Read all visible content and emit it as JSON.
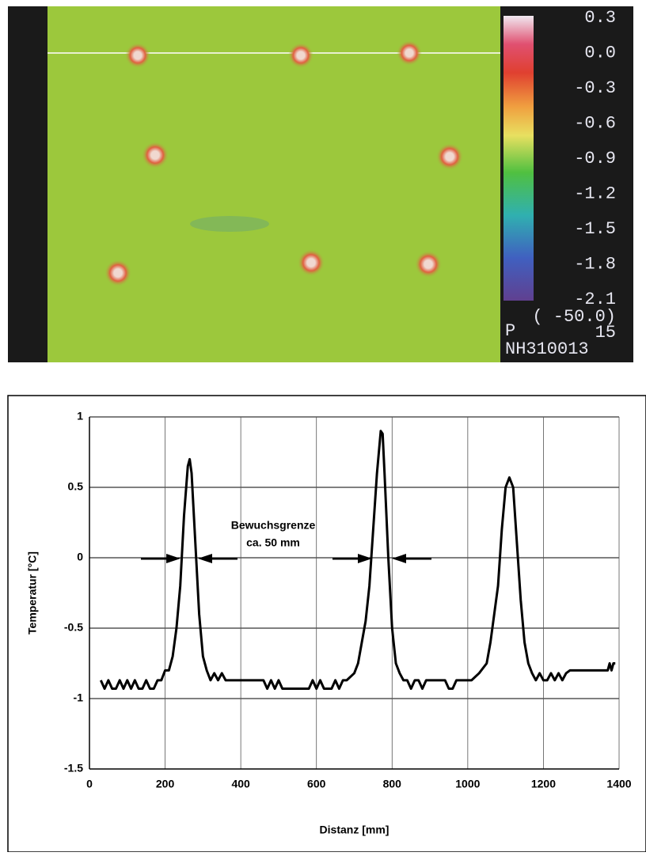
{
  "thermal_image": {
    "scale_labels": [
      "0.3",
      "0.0",
      "-0.3",
      "-0.6",
      "-0.9",
      "-1.2",
      "-1.5",
      "-1.8",
      "-2.1"
    ],
    "info": [
      "( -50.0)",
      "P",
      "15",
      "NH310013"
    ]
  },
  "chart_data": {
    "type": "line",
    "x_label": "Distanz [mm]",
    "y_label": "Temperatur [°C]",
    "annotation": [
      "Bewuchsgrenze",
      "ca. 50 mm"
    ],
    "color": "#000000",
    "xlim": [
      0,
      1400
    ],
    "xticks": [
      0,
      200,
      400,
      600,
      800,
      1000,
      1200,
      1400
    ],
    "ylim": [
      -1.5,
      1
    ],
    "yticks": [
      1,
      0.5,
      0,
      -0.5,
      -1,
      -1.5
    ],
    "grid": true,
    "x": [
      30,
      40,
      50,
      60,
      70,
      80,
      90,
      100,
      110,
      120,
      130,
      140,
      150,
      160,
      170,
      180,
      190,
      200,
      210,
      220,
      230,
      240,
      250,
      260,
      265,
      270,
      280,
      290,
      300,
      310,
      320,
      330,
      340,
      350,
      360,
      380,
      400,
      420,
      440,
      460,
      470,
      480,
      490,
      500,
      510,
      520,
      540,
      560,
      580,
      590,
      600,
      610,
      620,
      640,
      650,
      660,
      670,
      680,
      700,
      710,
      720,
      730,
      740,
      750,
      760,
      770,
      775,
      780,
      790,
      800,
      810,
      820,
      830,
      840,
      850,
      860,
      870,
      880,
      890,
      900,
      920,
      940,
      950,
      960,
      970,
      990,
      1010,
      1030,
      1050,
      1060,
      1070,
      1080,
      1090,
      1100,
      1110,
      1120,
      1130,
      1140,
      1150,
      1160,
      1170,
      1180,
      1190,
      1200,
      1210,
      1220,
      1230,
      1240,
      1250,
      1260,
      1270,
      1300,
      1340,
      1370,
      1375,
      1380,
      1385,
      1390
    ],
    "values": [
      -0.87,
      -0.93,
      -0.87,
      -0.93,
      -0.93,
      -0.87,
      -0.93,
      -0.87,
      -0.93,
      -0.87,
      -0.93,
      -0.93,
      -0.87,
      -0.93,
      -0.93,
      -0.87,
      -0.87,
      -0.8,
      -0.8,
      -0.7,
      -0.5,
      -0.2,
      0.3,
      0.65,
      0.7,
      0.6,
      0.1,
      -0.4,
      -0.7,
      -0.8,
      -0.87,
      -0.82,
      -0.87,
      -0.82,
      -0.87,
      -0.87,
      -0.87,
      -0.87,
      -0.87,
      -0.87,
      -0.93,
      -0.87,
      -0.93,
      -0.87,
      -0.93,
      -0.93,
      -0.93,
      -0.93,
      -0.93,
      -0.87,
      -0.93,
      -0.87,
      -0.93,
      -0.93,
      -0.87,
      -0.93,
      -0.87,
      -0.87,
      -0.82,
      -0.75,
      -0.6,
      -0.45,
      -0.2,
      0.2,
      0.6,
      0.9,
      0.88,
      0.6,
      0.0,
      -0.5,
      -0.75,
      -0.82,
      -0.87,
      -0.87,
      -0.93,
      -0.87,
      -0.87,
      -0.93,
      -0.87,
      -0.87,
      -0.87,
      -0.87,
      -0.93,
      -0.93,
      -0.87,
      -0.87,
      -0.87,
      -0.82,
      -0.75,
      -0.6,
      -0.4,
      -0.2,
      0.2,
      0.5,
      0.57,
      0.5,
      0.1,
      -0.3,
      -0.6,
      -0.75,
      -0.82,
      -0.87,
      -0.82,
      -0.87,
      -0.87,
      -0.82,
      -0.87,
      -0.82,
      -0.87,
      -0.82,
      -0.8,
      -0.8,
      -0.8,
      -0.8,
      -0.75,
      -0.8,
      -0.75,
      -0.75
    ]
  }
}
